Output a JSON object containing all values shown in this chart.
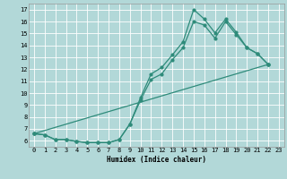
{
  "background_color": "#b2d8d8",
  "grid_color": "#d0e8e8",
  "line_color": "#2e8b7a",
  "xlabel": "Humidex (Indice chaleur)",
  "xlim": [
    -0.5,
    23.5
  ],
  "ylim": [
    5.5,
    17.5
  ],
  "xticks": [
    0,
    1,
    2,
    3,
    4,
    5,
    6,
    7,
    8,
    9,
    10,
    11,
    12,
    13,
    14,
    15,
    16,
    17,
    18,
    19,
    20,
    21,
    22,
    23
  ],
  "yticks": [
    6,
    7,
    8,
    9,
    10,
    11,
    12,
    13,
    14,
    15,
    16,
    17
  ],
  "line1_x": [
    0,
    1,
    2,
    3,
    4,
    5,
    6,
    7,
    8,
    9,
    10,
    11,
    12,
    13,
    14,
    15,
    16,
    17,
    18,
    19,
    20,
    21,
    22
  ],
  "line1_y": [
    6.6,
    6.5,
    6.1,
    6.1,
    5.95,
    5.85,
    5.85,
    5.85,
    6.1,
    7.4,
    9.6,
    11.6,
    12.15,
    13.2,
    14.3,
    17.0,
    16.2,
    15.05,
    16.2,
    15.1,
    13.8,
    13.3,
    12.4
  ],
  "line2_x": [
    0,
    1,
    2,
    3,
    4,
    5,
    6,
    7,
    8,
    9,
    10,
    11,
    12,
    13,
    14,
    15,
    16,
    17,
    18,
    19,
    20,
    21,
    22
  ],
  "line2_y": [
    6.6,
    6.5,
    6.1,
    6.1,
    5.95,
    5.85,
    5.85,
    5.85,
    6.1,
    7.4,
    9.4,
    11.15,
    11.6,
    12.8,
    13.8,
    16.0,
    15.7,
    14.6,
    16.0,
    14.9,
    13.8,
    13.3,
    12.4
  ],
  "line3_x": [
    0,
    22
  ],
  "line3_y": [
    6.6,
    12.4
  ]
}
